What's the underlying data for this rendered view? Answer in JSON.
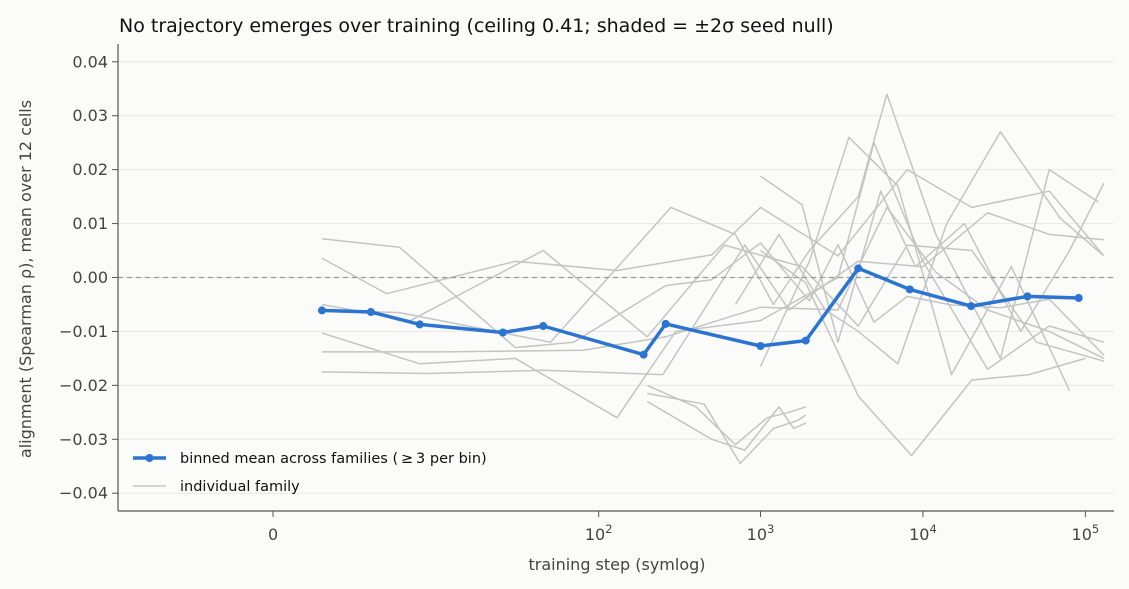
{
  "chart_data": {
    "type": "line",
    "title": "No trajectory emerges over training (ceiling 0.41; shaded = ±2σ seed null)",
    "xlabel": "training step (symlog)",
    "ylabel": "alignment (Spearman ρ), mean over 12 cells",
    "xscale": "symlog",
    "xlim": [
      -8,
      150000
    ],
    "ylim": [
      -0.0433,
      0.0433
    ],
    "xticks": [
      {
        "value": 0,
        "label": "0"
      },
      {
        "value": 100,
        "base": "10",
        "exp": "2"
      },
      {
        "value": 1000,
        "base": "10",
        "exp": "3"
      },
      {
        "value": 10000,
        "base": "10",
        "exp": "4"
      },
      {
        "value": 100000,
        "base": "10",
        "exp": "5"
      }
    ],
    "yticks": [
      {
        "value": 0.04,
        "label": "0.04"
      },
      {
        "value": 0.03,
        "label": "0.03"
      },
      {
        "value": 0.02,
        "label": "0.02"
      },
      {
        "value": 0.01,
        "label": "0.01"
      },
      {
        "value": 0.0,
        "label": "0.00"
      },
      {
        "value": -0.01,
        "label": "−0.01"
      },
      {
        "value": -0.02,
        "label": "−0.02"
      },
      {
        "value": -0.03,
        "label": "−0.03"
      },
      {
        "value": -0.04,
        "label": "−0.04"
      }
    ],
    "grid": "horizontal",
    "reference_line": {
      "y": 0.0,
      "style": "dashed",
      "color": "#999999"
    },
    "legend": {
      "placement": "lower-left",
      "entries": [
        {
          "label": "binned mean across families ( ≥ 3 per bin)",
          "color": "#2b74d1",
          "marker": "circle"
        },
        {
          "label": "individual family",
          "color": "#c4c4c4",
          "marker": "none"
        }
      ]
    },
    "colors": {
      "mean": "#2b74d1",
      "family": "#c4c4c4",
      "grid": "#e8e8e8",
      "background": "#fbfbf9"
    },
    "series": [
      {
        "role": "mean",
        "x": [
          1,
          3,
          7,
          25,
          45,
          190,
          260,
          1000,
          1900,
          4000,
          8300,
          19800,
          44000,
          91000
        ],
        "y": [
          -0.0061,
          -0.0064,
          -0.0087,
          -0.0102,
          -0.009,
          -0.0143,
          -0.0086,
          -0.0127,
          -0.0117,
          0.0017,
          -0.0022,
          -0.0053,
          -0.0035,
          -0.0038
        ]
      },
      {
        "role": "family",
        "x": [
          1,
          5,
          30,
          70,
          260,
          500,
          1000,
          2000,
          3000,
          5000,
          8000,
          15000,
          30000,
          60000,
          130000
        ],
        "y": [
          0.0072,
          0.0056,
          -0.013,
          -0.012,
          -0.0015,
          -0.0004,
          0.0064,
          -0.0043,
          0.0061,
          -0.0083,
          -0.0035,
          -0.0051,
          -0.0056,
          -0.004,
          -0.0144
        ]
      },
      {
        "role": "family",
        "x": [
          1,
          4,
          30,
          130,
          500,
          1000,
          3000,
          8000,
          20000,
          60000,
          130000
        ],
        "y": [
          0.0036,
          -0.003,
          0.003,
          0.0013,
          0.0042,
          0.013,
          0.004,
          0.02,
          0.013,
          0.016,
          0.004
        ]
      },
      {
        "role": "family",
        "x": [
          1,
          6,
          45,
          200,
          600,
          1800,
          4000,
          8000,
          20000,
          50000,
          130000
        ],
        "y": [
          -0.005,
          -0.008,
          0.005,
          -0.011,
          0.006,
          0.002,
          -0.009,
          0.006,
          0.005,
          -0.012,
          -0.0155
        ]
      },
      {
        "role": "family",
        "x": [
          1,
          8,
          45,
          250,
          800,
          1500,
          4000,
          10000,
          25000,
          60000,
          130000
        ],
        "y": [
          -0.0175,
          -0.0178,
          -0.0172,
          -0.018,
          0.006,
          -0.006,
          0.003,
          0.002,
          0.012,
          0.008,
          0.007
        ]
      },
      {
        "role": "family",
        "x": [
          1,
          10,
          80,
          260,
          1000,
          3000,
          6000,
          12000,
          25000,
          60000,
          130000
        ],
        "y": [
          -0.0138,
          -0.0138,
          -0.0135,
          -0.011,
          -0.0055,
          -0.006,
          0.013,
          0.001,
          -0.006,
          -0.01,
          -0.015
        ]
      },
      {
        "role": "family",
        "x": [
          1,
          7,
          30,
          130,
          300,
          1000,
          3000,
          5000,
          10000,
          25000,
          60000,
          130000
        ],
        "y": [
          -0.0103,
          -0.016,
          -0.015,
          -0.026,
          -0.01,
          -0.008,
          0.0,
          0.025,
          0.003,
          -0.017,
          -0.009,
          -0.012
        ]
      },
      {
        "role": "family",
        "x": [
          1,
          5,
          50,
          280,
          700,
          1200,
          2000,
          4000,
          6000,
          12000,
          30000,
          60000,
          120000
        ],
        "y": [
          -0.006,
          -0.0065,
          -0.012,
          0.013,
          0.008,
          -0.005,
          0.005,
          0.015,
          0.034,
          0.008,
          -0.015,
          0.02,
          0.014
        ]
      },
      {
        "role": "family",
        "x": [
          1000,
          1800,
          3000,
          5500,
          9000,
          18000,
          40000,
          80000,
          130000
        ],
        "y": [
          0.0188,
          0.0135,
          -0.012,
          0.016,
          0.002,
          0.01,
          -0.01,
          0.005,
          0.0175
        ]
      },
      {
        "role": "family",
        "x": [
          700,
          1300,
          2500,
          4000,
          7000,
          14000,
          30000,
          70000,
          130000
        ],
        "y": [
          -0.005,
          0.008,
          -0.006,
          -0.01,
          -0.016,
          0.01,
          0.027,
          0.011,
          0.004
        ]
      },
      {
        "role": "family",
        "x": [
          1000,
          2000,
          3500,
          7000,
          15000,
          35000,
          80000
        ],
        "y": [
          -0.0165,
          0.003,
          0.026,
          0.017,
          -0.018,
          0.002,
          -0.021
        ]
      },
      {
        "role": "family",
        "x": [
          1000,
          1900,
          4000,
          8500,
          20000,
          45000,
          100000
        ],
        "y": [
          0.005,
          -0.001,
          -0.022,
          -0.033,
          -0.019,
          -0.018,
          -0.015
        ]
      },
      {
        "role": "family",
        "x": [
          200,
          400,
          700,
          1100,
          1500,
          1900
        ],
        "y": [
          -0.02,
          -0.024,
          -0.031,
          -0.026,
          -0.025,
          -0.024
        ]
      },
      {
        "role": "family",
        "x": [
          200,
          450,
          750,
          1200,
          1700,
          1900
        ],
        "y": [
          -0.0215,
          -0.0235,
          -0.0345,
          -0.028,
          -0.0265,
          -0.0255
        ]
      },
      {
        "role": "family",
        "x": [
          200,
          500,
          800,
          1300,
          1600,
          1900
        ],
        "y": [
          -0.023,
          -0.03,
          -0.032,
          -0.024,
          -0.028,
          -0.027
        ]
      }
    ]
  }
}
